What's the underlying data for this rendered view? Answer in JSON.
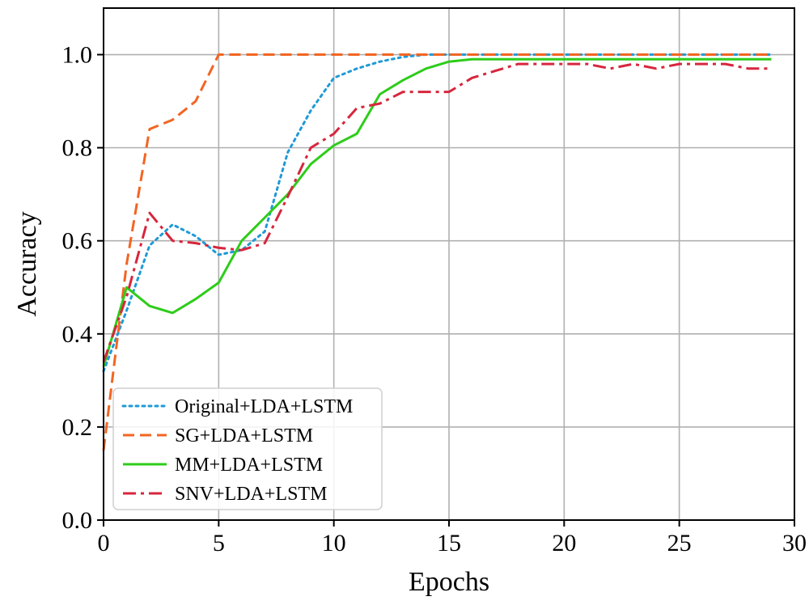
{
  "chart_data": {
    "type": "line",
    "title": "",
    "xlabel": "Epochs",
    "ylabel": "Accuracy",
    "xlim": [
      0,
      30
    ],
    "ylim": [
      0,
      1.1
    ],
    "xticks": [
      0,
      5,
      10,
      15,
      20,
      25,
      30
    ],
    "yticks": [
      0.0,
      0.2,
      0.4,
      0.6,
      0.8,
      1.0
    ],
    "xtick_labels": [
      "0",
      "5",
      "10",
      "15",
      "20",
      "25",
      "30"
    ],
    "ytick_labels": [
      "0.0",
      "0.2",
      "0.4",
      "0.6",
      "0.8",
      "1.0"
    ],
    "grid": true,
    "legend_position": "bottom-left",
    "x": [
      0,
      1,
      2,
      3,
      4,
      5,
      6,
      7,
      8,
      9,
      10,
      11,
      12,
      13,
      14,
      15,
      16,
      17,
      18,
      19,
      20,
      21,
      22,
      23,
      24,
      25,
      26,
      27,
      28,
      29
    ],
    "series": [
      {
        "name": "Original+LDA+LSTM",
        "color": "#1f9ad6",
        "dash": "dotted",
        "values": [
          0.32,
          0.45,
          0.59,
          0.635,
          0.61,
          0.57,
          0.58,
          0.62,
          0.79,
          0.88,
          0.95,
          0.97,
          0.985,
          0.995,
          1.0,
          1.0,
          1.0,
          1.0,
          1.0,
          1.0,
          1.0,
          1.0,
          1.0,
          1.0,
          1.0,
          1.0,
          1.0,
          1.0,
          1.0,
          1.0
        ]
      },
      {
        "name": "SG+LDA+LSTM",
        "color": "#f26522",
        "dash": "dashed",
        "values": [
          0.15,
          0.55,
          0.84,
          0.86,
          0.9,
          1.0,
          1.0,
          1.0,
          1.0,
          1.0,
          1.0,
          1.0,
          1.0,
          1.0,
          1.0,
          1.0,
          1.0,
          1.0,
          1.0,
          1.0,
          1.0,
          1.0,
          1.0,
          1.0,
          1.0,
          1.0,
          1.0,
          1.0,
          1.0,
          1.0
        ]
      },
      {
        "name": "MM+LDA+LSTM",
        "color": "#2ecc1a",
        "dash": "solid",
        "values": [
          0.33,
          0.5,
          0.46,
          0.445,
          0.475,
          0.51,
          0.6,
          0.65,
          0.7,
          0.765,
          0.805,
          0.83,
          0.915,
          0.945,
          0.97,
          0.985,
          0.99,
          0.99,
          0.99,
          0.99,
          0.99,
          0.99,
          0.99,
          0.99,
          0.99,
          0.99,
          0.99,
          0.99,
          0.99,
          0.99
        ]
      },
      {
        "name": "SNV+LDA+LSTM",
        "color": "#d7263d",
        "dash": "dashdot",
        "values": [
          0.34,
          0.48,
          0.66,
          0.6,
          0.595,
          0.585,
          0.58,
          0.595,
          0.695,
          0.8,
          0.83,
          0.885,
          0.895,
          0.92,
          0.92,
          0.92,
          0.95,
          0.965,
          0.98,
          0.98,
          0.98,
          0.98,
          0.97,
          0.98,
          0.97,
          0.98,
          0.98,
          0.98,
          0.97,
          0.97
        ]
      }
    ]
  }
}
